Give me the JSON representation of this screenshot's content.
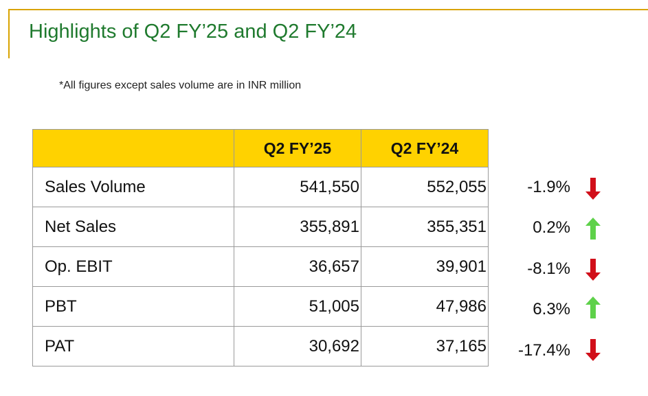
{
  "title": "Highlights of Q2 FY’25 and Q2 FY’24",
  "note": "*All figures except sales volume are in INR million",
  "table": {
    "headers": [
      "",
      "Q2 FY’25",
      "Q2 FY’24"
    ],
    "rows": [
      {
        "label": "Sales Volume",
        "fy25": "541,550",
        "fy24": "552,055",
        "change": "-1.9%",
        "direction": "down"
      },
      {
        "label": "Net Sales",
        "fy25": "355,891",
        "fy24": "355,351",
        "change": "0.2%",
        "direction": "up"
      },
      {
        "label": "Op. EBIT",
        "fy25": "36,657",
        "fy24": "39,901",
        "change": "-8.1%",
        "direction": "down"
      },
      {
        "label": "PBT",
        "fy25": "51,005",
        "fy24": "47,986",
        "change": "6.3%",
        "direction": "up"
      },
      {
        "label": "PAT",
        "fy25": "30,692",
        "fy24": "37,165",
        "change": "-17.4%",
        "direction": "down"
      }
    ]
  },
  "colors": {
    "accent_gold": "#d9a300",
    "header_fill": "#ffd200",
    "title_green": "#1f7a2e",
    "arrow_down": "#d10f1a",
    "arrow_up": "#5ed14a"
  },
  "icons": {
    "down": "red-down-arrow-icon",
    "up": "green-up-arrow-icon"
  }
}
